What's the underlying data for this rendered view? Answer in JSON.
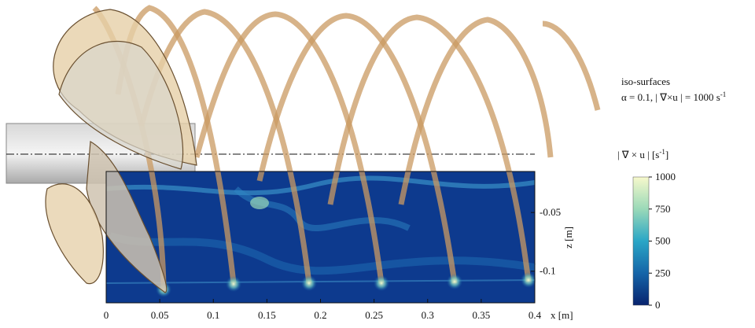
{
  "figure": {
    "annotation": {
      "line1": "iso-surfaces",
      "line2": "α = 0.1, | ∇×u | = 1000 s",
      "line2_sup": "-1"
    },
    "x_axis": {
      "label": "x [m]",
      "lim": [
        0,
        0.4
      ],
      "ticks": [
        0,
        0.05,
        0.1,
        0.15,
        0.2,
        0.25,
        0.3,
        0.35,
        0.4
      ]
    },
    "z_axis": {
      "label": "z [m]",
      "lim": [
        -0.127,
        -0.015
      ],
      "ticks": [
        -0.05,
        -0.1
      ]
    },
    "colorbar": {
      "title": "| ∇ × u | [s",
      "title_sup": "-1",
      "title_end": "]",
      "lim": [
        0,
        1000
      ],
      "ticks": [
        0,
        250,
        500,
        750,
        1000
      ]
    }
  }
}
